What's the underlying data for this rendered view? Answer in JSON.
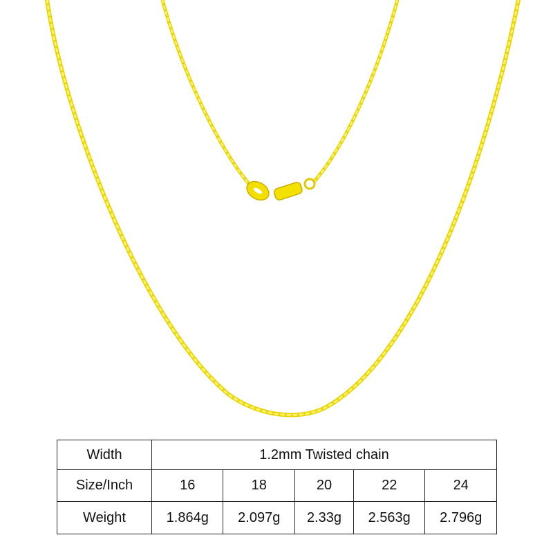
{
  "product": {
    "name_hint_icon": "gold-rope-chain-necklace",
    "color": "#f2e000"
  },
  "table": {
    "width_label": "Width",
    "width_value": "1.2mm Twisted chain",
    "size_label": "Size/Inch",
    "sizes": [
      "16",
      "18",
      "20",
      "22",
      "24"
    ],
    "weight_label": "Weight",
    "weights": [
      "1.864g",
      "2.097g",
      "2.33g",
      "2.563g",
      "2.796g"
    ]
  }
}
